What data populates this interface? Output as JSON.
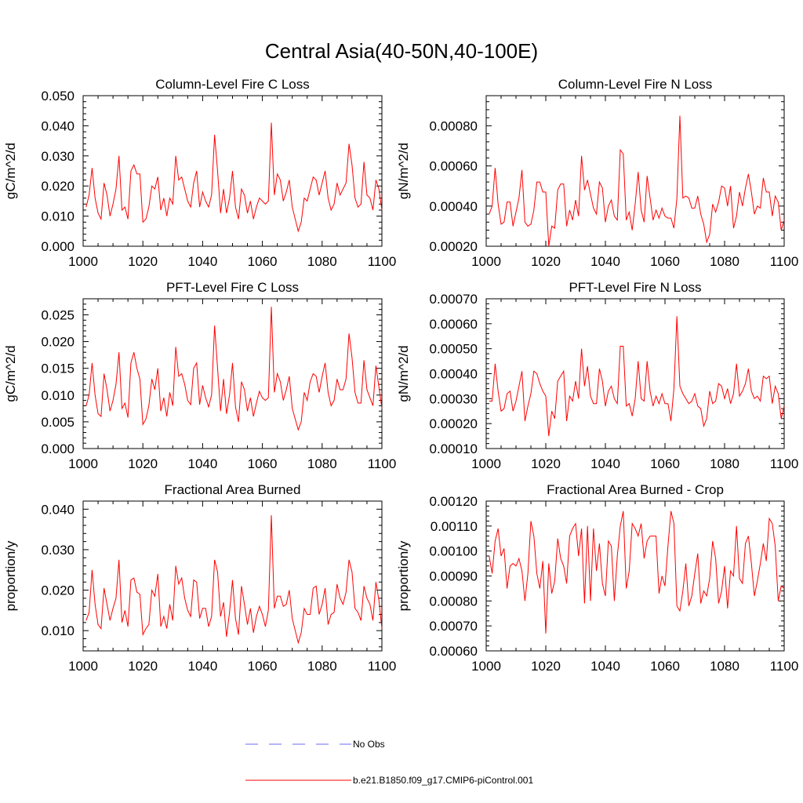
{
  "figure_title": "Central Asia(40-50N,40-100E)",
  "legend": [
    {
      "label": "No Obs",
      "color": "#6a6af0",
      "style": "dashed"
    },
    {
      "label": "b.e21.B1850.f09_g17.CMIP6-piControl.001",
      "color": "#ff0000",
      "style": "solid"
    }
  ],
  "chart_data": [
    {
      "type": "line",
      "title": "Column-Level Fire C Loss",
      "ylabel": "gC/m^2/d",
      "xlim": [
        1000,
        1100
      ],
      "ylim": [
        0,
        0.05
      ],
      "xticks": [
        "1000",
        "1020",
        "1040",
        "1060",
        "1080",
        "1100"
      ],
      "yticks": [
        "0.000",
        "0.010",
        "0.020",
        "0.030",
        "0.040",
        "0.050"
      ],
      "x_start": 1001,
      "series": [
        {
          "name": "b.e21.B1850.f09_g17.CMIP6-piControl.001",
          "color": "#ff0000",
          "values": [
            0.013,
            0.017,
            0.026,
            0.016,
            0.011,
            0.009,
            0.021,
            0.017,
            0.01,
            0.014,
            0.019,
            0.03,
            0.012,
            0.013,
            0.009,
            0.025,
            0.027,
            0.024,
            0.024,
            0.008,
            0.009,
            0.013,
            0.02,
            0.019,
            0.023,
            0.012,
            0.016,
            0.01,
            0.016,
            0.014,
            0.03,
            0.022,
            0.023,
            0.019,
            0.015,
            0.013,
            0.021,
            0.025,
            0.013,
            0.018,
            0.015,
            0.013,
            0.017,
            0.037,
            0.025,
            0.011,
            0.019,
            0.011,
            0.016,
            0.025,
            0.013,
            0.009,
            0.019,
            0.017,
            0.011,
            0.015,
            0.009,
            0.013,
            0.016,
            0.015,
            0.014,
            0.015,
            0.041,
            0.017,
            0.024,
            0.022,
            0.015,
            0.018,
            0.022,
            0.013,
            0.009,
            0.005,
            0.008,
            0.016,
            0.015,
            0.019,
            0.023,
            0.022,
            0.017,
            0.021,
            0.025,
            0.016,
            0.012,
            0.014,
            0.021,
            0.017,
            0.019,
            0.021,
            0.034,
            0.027,
            0.016,
            0.013,
            0.014,
            0.028,
            0.017,
            0.016,
            0.012,
            0.022,
            0.019,
            0.012
          ]
        }
      ]
    },
    {
      "type": "line",
      "title": "Column-Level Fire N Loss",
      "ylabel": "gN/m^2/d",
      "xlim": [
        1000,
        1100
      ],
      "ylim": [
        0.0002,
        0.00095
      ],
      "xticks": [
        "1000",
        "1020",
        "1040",
        "1060",
        "1080",
        "1100"
      ],
      "yticks": [
        "0.00020",
        "0.00040",
        "0.00060",
        "0.00080"
      ],
      "ytick_values": [
        0.0002,
        0.0004,
        0.0006,
        0.0008
      ],
      "x_start": 1001,
      "series": [
        {
          "name": "b.e21.B1850.f09_g17.CMIP6-piControl.001",
          "color": "#ff0000",
          "values": [
            0.00036,
            0.0004,
            0.00059,
            0.00041,
            0.00031,
            0.00032,
            0.00042,
            0.00042,
            0.0003,
            0.00037,
            0.00044,
            0.00058,
            0.00032,
            0.0003,
            0.00031,
            0.00038,
            0.00052,
            0.00052,
            0.00047,
            0.00047,
            0.0002,
            0.0003,
            0.00029,
            0.00048,
            0.00051,
            0.00051,
            0.0003,
            0.00038,
            0.00033,
            0.00043,
            0.00035,
            0.00065,
            0.00048,
            0.00053,
            0.00046,
            0.00039,
            0.00036,
            0.00052,
            0.00049,
            0.00032,
            0.0004,
            0.00043,
            0.00035,
            0.00033,
            0.00068,
            0.00066,
            0.00033,
            0.00037,
            0.00028,
            0.00041,
            0.00057,
            0.00038,
            0.00032,
            0.00055,
            0.00044,
            0.00033,
            0.00038,
            0.00034,
            0.00039,
            0.00035,
            0.00034,
            0.00034,
            0.00029,
            0.00044,
            0.00085,
            0.00044,
            0.00045,
            0.00044,
            0.00039,
            0.00039,
            0.00045,
            0.00036,
            0.00031,
            0.00022,
            0.00026,
            0.00041,
            0.00037,
            0.00042,
            0.0005,
            0.00049,
            0.0004,
            0.0005,
            0.00029,
            0.00035,
            0.00047,
            0.0004,
            0.00049,
            0.00056,
            0.00047,
            0.00036,
            0.0004,
            0.00039,
            0.00054,
            0.00047,
            0.00047,
            0.00035,
            0.00045,
            0.00042,
            0.00028,
            0.00033
          ]
        }
      ]
    },
    {
      "type": "line",
      "title": "PFT-Level Fire C Loss",
      "ylabel": "gC/m^2/d",
      "xlim": [
        1000,
        1100
      ],
      "ylim": [
        0,
        0.028
      ],
      "xticks": [
        "1000",
        "1020",
        "1040",
        "1060",
        "1080",
        "1100"
      ],
      "yticks": [
        "0.000",
        "0.005",
        "0.010",
        "0.015",
        "0.020",
        "0.025"
      ],
      "ytick_values": [
        0,
        0.005,
        0.01,
        0.015,
        0.02,
        0.025
      ],
      "x_start": 1001,
      "series": [
        {
          "name": "b.e21.B1850.f09_g17.CMIP6-piControl.001",
          "color": "#ff0000",
          "values": [
            0.008,
            0.01,
            0.016,
            0.01,
            0.0065,
            0.006,
            0.014,
            0.011,
            0.007,
            0.009,
            0.012,
            0.018,
            0.0075,
            0.0085,
            0.0058,
            0.016,
            0.018,
            0.015,
            0.013,
            0.0045,
            0.0055,
            0.008,
            0.013,
            0.011,
            0.015,
            0.007,
            0.0095,
            0.006,
            0.0105,
            0.008,
            0.019,
            0.0135,
            0.014,
            0.012,
            0.009,
            0.0082,
            0.015,
            0.016,
            0.0082,
            0.0118,
            0.0095,
            0.0078,
            0.01,
            0.023,
            0.015,
            0.007,
            0.013,
            0.0065,
            0.01,
            0.016,
            0.0078,
            0.005,
            0.0125,
            0.011,
            0.007,
            0.0095,
            0.006,
            0.0085,
            0.0107,
            0.0095,
            0.009,
            0.0095,
            0.0265,
            0.0105,
            0.014,
            0.0125,
            0.009,
            0.011,
            0.0135,
            0.0075,
            0.0055,
            0.0035,
            0.005,
            0.0105,
            0.009,
            0.0125,
            0.014,
            0.0135,
            0.0105,
            0.0135,
            0.016,
            0.0105,
            0.008,
            0.009,
            0.013,
            0.011,
            0.011,
            0.013,
            0.0215,
            0.017,
            0.0105,
            0.0085,
            0.0085,
            0.0165,
            0.011,
            0.0095,
            0.008,
            0.0155,
            0.0115,
            0.0075
          ]
        }
      ]
    },
    {
      "type": "line",
      "title": "PFT-Level Fire N Loss",
      "ylabel": "gN/m^2/d",
      "xlim": [
        1000,
        1100
      ],
      "ylim": [
        0.0001,
        0.0007
      ],
      "xticks": [
        "1000",
        "1020",
        "1040",
        "1060",
        "1080",
        "1100"
      ],
      "yticks": [
        "0.00010",
        "0.00020",
        "0.00030",
        "0.00040",
        "0.00050",
        "0.00060",
        "0.00070"
      ],
      "ytick_values": [
        0.0001,
        0.0002,
        0.0003,
        0.0004,
        0.0005,
        0.0006,
        0.0007
      ],
      "x_start": 1001,
      "series": [
        {
          "name": "b.e21.B1850.f09_g17.CMIP6-piControl.001",
          "color": "#ff0000",
          "values": [
            0.00029,
            0.00029,
            0.00044,
            0.00033,
            0.00025,
            0.00026,
            0.00032,
            0.00033,
            0.00025,
            0.00029,
            0.00035,
            0.00041,
            0.00021,
            0.00027,
            0.00032,
            0.00041,
            0.0004,
            0.00036,
            0.00033,
            0.00031,
            0.00015,
            0.00025,
            0.00022,
            0.00037,
            0.00039,
            0.00041,
            0.00021,
            0.00031,
            0.00029,
            0.00037,
            0.0003,
            0.0005,
            0.00035,
            0.00043,
            0.00031,
            0.00028,
            0.00028,
            0.00042,
            0.00037,
            0.00027,
            0.00033,
            0.00035,
            0.0003,
            0.00028,
            0.00051,
            0.00051,
            0.00027,
            0.00028,
            0.00023,
            0.0003,
            0.00045,
            0.0003,
            0.00029,
            0.00045,
            0.00033,
            0.00027,
            0.00031,
            0.00028,
            0.00032,
            0.00028,
            0.00028,
            0.00021,
            0.00034,
            0.00063,
            0.00035,
            0.00032,
            0.0003,
            0.00028,
            0.00029,
            0.00032,
            0.00027,
            0.00026,
            0.00019,
            0.00022,
            0.00033,
            0.00028,
            0.00029,
            0.00036,
            0.00035,
            0.0003,
            0.00034,
            0.00028,
            0.00032,
            0.00044,
            0.00031,
            0.00033,
            0.00036,
            0.00042,
            0.00033,
            0.0003,
            0.00031,
            0.00029,
            0.00039,
            0.00038,
            0.00039,
            0.00028,
            0.00035,
            0.00032,
            0.00022,
            0.00027
          ]
        }
      ]
    },
    {
      "type": "line",
      "title": "Fractional Area Burned",
      "ylabel": "proportion/y",
      "xlim": [
        1000,
        1100
      ],
      "ylim": [
        0.005,
        0.042
      ],
      "xticks": [
        "1000",
        "1020",
        "1040",
        "1060",
        "1080",
        "1100"
      ],
      "yticks": [
        "0.010",
        "0.020",
        "0.030",
        "0.040"
      ],
      "ytick_values": [
        0.01,
        0.02,
        0.03,
        0.04
      ],
      "x_start": 1001,
      "series": [
        {
          "name": "b.e21.B1850.f09_g17.CMIP6-piControl.001",
          "color": "#ff0000",
          "values": [
            0.0125,
            0.0145,
            0.025,
            0.0165,
            0.0115,
            0.0105,
            0.0205,
            0.0165,
            0.0125,
            0.0155,
            0.018,
            0.0275,
            0.012,
            0.015,
            0.011,
            0.0225,
            0.023,
            0.0195,
            0.019,
            0.009,
            0.0105,
            0.0115,
            0.02,
            0.0185,
            0.024,
            0.011,
            0.0135,
            0.0105,
            0.0165,
            0.0125,
            0.026,
            0.0215,
            0.023,
            0.018,
            0.015,
            0.0135,
            0.0225,
            0.022,
            0.013,
            0.0155,
            0.0155,
            0.011,
            0.0135,
            0.0275,
            0.0245,
            0.0135,
            0.017,
            0.0085,
            0.0145,
            0.0225,
            0.013,
            0.009,
            0.021,
            0.0165,
            0.0115,
            0.0155,
            0.0095,
            0.0135,
            0.016,
            0.014,
            0.011,
            0.015,
            0.0385,
            0.0155,
            0.0185,
            0.0185,
            0.016,
            0.0165,
            0.02,
            0.013,
            0.01,
            0.007,
            0.0095,
            0.0155,
            0.014,
            0.014,
            0.0205,
            0.021,
            0.014,
            0.0165,
            0.0205,
            0.0115,
            0.014,
            0.0145,
            0.0215,
            0.018,
            0.0165,
            0.0195,
            0.0275,
            0.0245,
            0.0155,
            0.0145,
            0.0125,
            0.021,
            0.018,
            0.0165,
            0.0125,
            0.022,
            0.0175,
            0.0105
          ]
        }
      ]
    },
    {
      "type": "line",
      "title": "Fractional Area Burned - Crop",
      "ylabel": "proportion/y",
      "xlim": [
        1000,
        1100
      ],
      "ylim": [
        0.0006,
        0.0012
      ],
      "xticks": [
        "1000",
        "1020",
        "1040",
        "1060",
        "1080",
        "1100"
      ],
      "yticks": [
        "0.00060",
        "0.00070",
        "0.00080",
        "0.00090",
        "0.00100",
        "0.00110",
        "0.00120"
      ],
      "ytick_values": [
        0.0006,
        0.0007,
        0.0008,
        0.0009,
        0.001,
        0.0011,
        0.0012
      ],
      "x_start": 1001,
      "series": [
        {
          "name": "b.e21.B1850.f09_g17.CMIP6-piControl.001",
          "color": "#ff0000",
          "values": [
            0.00098,
            0.00091,
            0.00104,
            0.00109,
            0.00098,
            0.00101,
            0.00085,
            0.00094,
            0.00095,
            0.00094,
            0.00097,
            0.00092,
            0.0008,
            0.00091,
            0.00112,
            0.00106,
            0.00091,
            0.00085,
            0.00096,
            0.00067,
            0.00095,
            0.00083,
            0.00088,
            0.00105,
            0.00097,
            0.00094,
            0.00087,
            0.00106,
            0.00109,
            0.00111,
            0.00098,
            0.00109,
            0.00079,
            0.0011,
            0.0008,
            0.00109,
            0.00092,
            0.00103,
            0.00087,
            0.00082,
            0.00104,
            0.00102,
            0.0008,
            0.00098,
            0.0011,
            0.00116,
            0.00085,
            0.00092,
            0.00111,
            0.00109,
            0.00106,
            0.00111,
            0.00097,
            0.00104,
            0.00106,
            0.00106,
            0.00106,
            0.00083,
            0.0009,
            0.00086,
            0.00102,
            0.00116,
            0.00111,
            0.00078,
            0.00076,
            0.00084,
            0.00095,
            0.00078,
            0.00082,
            0.00091,
            0.00099,
            0.00079,
            0.00084,
            0.00082,
            0.00089,
            0.00104,
            0.00097,
            0.00079,
            0.00084,
            0.00094,
            0.00077,
            0.00092,
            0.0009,
            0.0011,
            0.00089,
            0.00087,
            0.00103,
            0.00106,
            0.00095,
            0.00082,
            0.00088,
            0.00095,
            0.00103,
            0.00096,
            0.00113,
            0.00111,
            0.00102,
            0.0008,
            0.00086,
            0.00085
          ]
        }
      ]
    }
  ]
}
